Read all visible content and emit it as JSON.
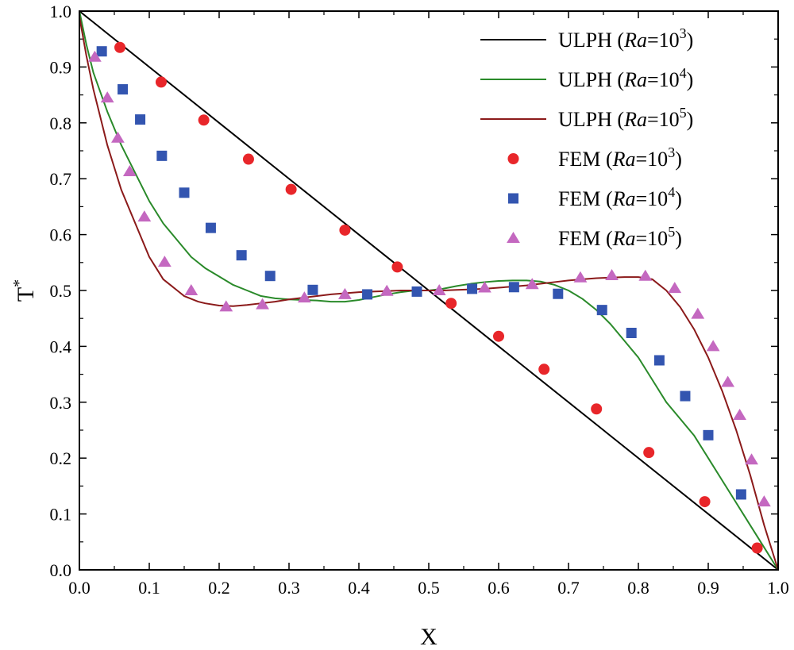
{
  "chart_data": {
    "type": "line",
    "xlabel": "X",
    "ylabel": "T",
    "ylabel_superscript": "*",
    "xlim": [
      0.0,
      1.0
    ],
    "ylim": [
      0.0,
      1.0
    ],
    "xticks": [
      "0.0",
      "0.1",
      "0.2",
      "0.3",
      "0.4",
      "0.5",
      "0.6",
      "0.7",
      "0.8",
      "0.9",
      "1.0"
    ],
    "yticks": [
      "0.0",
      "0.1",
      "0.2",
      "0.3",
      "0.4",
      "0.5",
      "0.6",
      "0.7",
      "0.8",
      "0.9",
      "1.0"
    ],
    "legend_position": "top-right",
    "series": [
      {
        "name": "ULPH (Ra=10^3)",
        "label_prefix": "ULPH (",
        "label_italic": "Ra",
        "label_base": "=10",
        "label_exp": "3",
        "label_suffix": ")",
        "kind": "line",
        "color": "#000000",
        "points": [
          [
            0.0,
            1.0
          ],
          [
            1.0,
            0.0
          ]
        ]
      },
      {
        "name": "ULPH (Ra=10^4)",
        "label_prefix": "ULPH (",
        "label_italic": "Ra",
        "label_base": "=10",
        "label_exp": "4",
        "label_suffix": ")",
        "kind": "line",
        "color": "#2a8a2a",
        "points": [
          [
            0.0,
            1.0
          ],
          [
            0.01,
            0.94
          ],
          [
            0.02,
            0.89
          ],
          [
            0.04,
            0.82
          ],
          [
            0.06,
            0.76
          ],
          [
            0.08,
            0.71
          ],
          [
            0.1,
            0.66
          ],
          [
            0.12,
            0.62
          ],
          [
            0.14,
            0.59
          ],
          [
            0.16,
            0.56
          ],
          [
            0.18,
            0.54
          ],
          [
            0.2,
            0.525
          ],
          [
            0.22,
            0.51
          ],
          [
            0.24,
            0.5
          ],
          [
            0.26,
            0.49
          ],
          [
            0.28,
            0.486
          ],
          [
            0.3,
            0.484
          ],
          [
            0.32,
            0.483
          ],
          [
            0.34,
            0.482
          ],
          [
            0.36,
            0.48
          ],
          [
            0.38,
            0.48
          ],
          [
            0.4,
            0.483
          ],
          [
            0.42,
            0.488
          ],
          [
            0.44,
            0.493
          ],
          [
            0.46,
            0.497
          ],
          [
            0.48,
            0.5
          ],
          [
            0.5,
            0.5
          ],
          [
            0.52,
            0.503
          ],
          [
            0.54,
            0.508
          ],
          [
            0.56,
            0.512
          ],
          [
            0.58,
            0.515
          ],
          [
            0.6,
            0.517
          ],
          [
            0.62,
            0.518
          ],
          [
            0.64,
            0.518
          ],
          [
            0.66,
            0.516
          ],
          [
            0.68,
            0.51
          ],
          [
            0.7,
            0.5
          ],
          [
            0.72,
            0.485
          ],
          [
            0.74,
            0.465
          ],
          [
            0.76,
            0.44
          ],
          [
            0.78,
            0.41
          ],
          [
            0.8,
            0.38
          ],
          [
            0.82,
            0.34
          ],
          [
            0.84,
            0.3
          ],
          [
            0.86,
            0.27
          ],
          [
            0.88,
            0.24
          ],
          [
            0.9,
            0.2
          ],
          [
            0.92,
            0.16
          ],
          [
            0.94,
            0.12
          ],
          [
            0.96,
            0.08
          ],
          [
            0.98,
            0.04
          ],
          [
            1.0,
            0.0
          ]
        ]
      },
      {
        "name": "ULPH (Ra=10^5)",
        "label_prefix": "ULPH (",
        "label_italic": "Ra",
        "label_base": "=10",
        "label_exp": "5",
        "label_suffix": ")",
        "kind": "line",
        "color": "#8b1a1a",
        "points": [
          [
            0.0,
            0.99
          ],
          [
            0.01,
            0.92
          ],
          [
            0.02,
            0.86
          ],
          [
            0.03,
            0.81
          ],
          [
            0.04,
            0.76
          ],
          [
            0.05,
            0.72
          ],
          [
            0.06,
            0.68
          ],
          [
            0.07,
            0.65
          ],
          [
            0.08,
            0.62
          ],
          [
            0.09,
            0.59
          ],
          [
            0.1,
            0.56
          ],
          [
            0.11,
            0.54
          ],
          [
            0.12,
            0.52
          ],
          [
            0.13,
            0.51
          ],
          [
            0.14,
            0.5
          ],
          [
            0.15,
            0.49
          ],
          [
            0.16,
            0.485
          ],
          [
            0.17,
            0.48
          ],
          [
            0.18,
            0.477
          ],
          [
            0.2,
            0.473
          ],
          [
            0.22,
            0.472
          ],
          [
            0.24,
            0.474
          ],
          [
            0.26,
            0.477
          ],
          [
            0.28,
            0.48
          ],
          [
            0.3,
            0.484
          ],
          [
            0.32,
            0.487
          ],
          [
            0.34,
            0.49
          ],
          [
            0.36,
            0.493
          ],
          [
            0.38,
            0.495
          ],
          [
            0.4,
            0.497
          ],
          [
            0.42,
            0.498
          ],
          [
            0.44,
            0.499
          ],
          [
            0.46,
            0.5
          ],
          [
            0.48,
            0.5
          ],
          [
            0.5,
            0.5
          ],
          [
            0.52,
            0.5
          ],
          [
            0.54,
            0.501
          ],
          [
            0.56,
            0.502
          ],
          [
            0.58,
            0.503
          ],
          [
            0.6,
            0.505
          ],
          [
            0.62,
            0.507
          ],
          [
            0.64,
            0.509
          ],
          [
            0.66,
            0.512
          ],
          [
            0.68,
            0.515
          ],
          [
            0.7,
            0.518
          ],
          [
            0.72,
            0.52
          ],
          [
            0.74,
            0.522
          ],
          [
            0.76,
            0.523
          ],
          [
            0.78,
            0.524
          ],
          [
            0.8,
            0.524
          ],
          [
            0.82,
            0.52
          ],
          [
            0.84,
            0.5
          ],
          [
            0.86,
            0.47
          ],
          [
            0.88,
            0.43
          ],
          [
            0.9,
            0.38
          ],
          [
            0.92,
            0.32
          ],
          [
            0.94,
            0.25
          ],
          [
            0.96,
            0.17
          ],
          [
            0.98,
            0.08
          ],
          [
            1.0,
            0.0
          ]
        ]
      },
      {
        "name": "FEM (Ra=10^3)",
        "label_prefix": "FEM (",
        "label_italic": "Ra",
        "label_base": "=10",
        "label_exp": "3",
        "label_suffix": ")",
        "kind": "marker",
        "marker": "circle",
        "color": "#e8262a",
        "points": [
          [
            0.058,
            0.935
          ],
          [
            0.117,
            0.873
          ],
          [
            0.178,
            0.805
          ],
          [
            0.242,
            0.735
          ],
          [
            0.303,
            0.681
          ],
          [
            0.38,
            0.608
          ],
          [
            0.455,
            0.542
          ],
          [
            0.532,
            0.477
          ],
          [
            0.6,
            0.418
          ],
          [
            0.665,
            0.359
          ],
          [
            0.74,
            0.288
          ],
          [
            0.815,
            0.21
          ],
          [
            0.895,
            0.122
          ],
          [
            0.97,
            0.039
          ]
        ]
      },
      {
        "name": "FEM (Ra=10^4)",
        "label_prefix": "FEM (",
        "label_italic": "Ra",
        "label_base": "=10",
        "label_exp": "4",
        "label_suffix": ")",
        "kind": "marker",
        "marker": "square",
        "color": "#3355b0",
        "points": [
          [
            0.032,
            0.928
          ],
          [
            0.062,
            0.86
          ],
          [
            0.087,
            0.806
          ],
          [
            0.118,
            0.741
          ],
          [
            0.15,
            0.675
          ],
          [
            0.188,
            0.612
          ],
          [
            0.232,
            0.563
          ],
          [
            0.273,
            0.526
          ],
          [
            0.334,
            0.501
          ],
          [
            0.412,
            0.493
          ],
          [
            0.483,
            0.498
          ],
          [
            0.562,
            0.503
          ],
          [
            0.622,
            0.506
          ],
          [
            0.685,
            0.494
          ],
          [
            0.748,
            0.465
          ],
          [
            0.79,
            0.424
          ],
          [
            0.83,
            0.375
          ],
          [
            0.867,
            0.311
          ],
          [
            0.9,
            0.241
          ],
          [
            0.947,
            0.135
          ]
        ]
      },
      {
        "name": "FEM (Ra=10^5)",
        "label_prefix": "FEM (",
        "label_italic": "Ra",
        "label_base": "=10",
        "label_exp": "5",
        "label_suffix": ")",
        "kind": "marker",
        "marker": "triangle",
        "color": "#c468c0",
        "points": [
          [
            0.022,
            0.918
          ],
          [
            0.04,
            0.845
          ],
          [
            0.055,
            0.773
          ],
          [
            0.072,
            0.713
          ],
          [
            0.093,
            0.632
          ],
          [
            0.122,
            0.551
          ],
          [
            0.16,
            0.5
          ],
          [
            0.21,
            0.471
          ],
          [
            0.262,
            0.475
          ],
          [
            0.322,
            0.487
          ],
          [
            0.38,
            0.493
          ],
          [
            0.44,
            0.499
          ],
          [
            0.515,
            0.5
          ],
          [
            0.58,
            0.505
          ],
          [
            0.648,
            0.511
          ],
          [
            0.717,
            0.523
          ],
          [
            0.762,
            0.527
          ],
          [
            0.81,
            0.526
          ],
          [
            0.852,
            0.504
          ],
          [
            0.885,
            0.458
          ],
          [
            0.907,
            0.4
          ],
          [
            0.928,
            0.336
          ],
          [
            0.945,
            0.277
          ],
          [
            0.962,
            0.197
          ],
          [
            0.98,
            0.122
          ]
        ]
      }
    ]
  }
}
